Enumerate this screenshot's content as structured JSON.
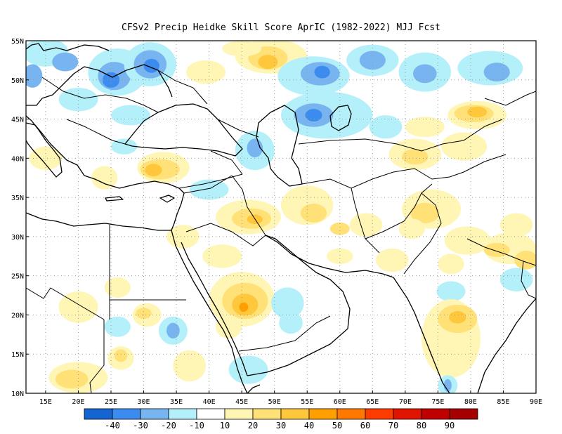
{
  "title": "CFSv2 Precip Heidke Skill Score AprIC (1982-2022) MJJ Fcst",
  "map": {
    "lon_range": [
      12,
      90
    ],
    "lat_range": [
      10,
      55
    ],
    "lon_ticks": [
      15,
      20,
      25,
      30,
      35,
      40,
      45,
      50,
      55,
      60,
      65,
      70,
      75,
      80,
      85,
      90
    ],
    "lon_tick_labels": [
      "15E",
      "20E",
      "25E",
      "30E",
      "35E",
      "40E",
      "45E",
      "50E",
      "55E",
      "60E",
      "65E",
      "70E",
      "75E",
      "80E",
      "85E",
      "90E"
    ],
    "lat_ticks": [
      10,
      15,
      20,
      25,
      30,
      35,
      40,
      45,
      50,
      55
    ],
    "lat_tick_labels": [
      "10N",
      "15N",
      "20N",
      "25N",
      "30N",
      "35N",
      "40N",
      "45N",
      "50N",
      "55N"
    ],
    "grid": true,
    "colorbar": {
      "colors": [
        "#1464d2",
        "#3c8cf0",
        "#78b4f0",
        "#b4f0fa",
        "#ffffff",
        "#fff5b4",
        "#ffe178",
        "#ffc83c",
        "#ffa000",
        "#ff7800",
        "#ff3c00",
        "#e11400",
        "#c00000",
        "#a50000"
      ],
      "labels": [
        "-40",
        "-30",
        "-20",
        "-10",
        "10",
        "20",
        "30",
        "40",
        "50",
        "60",
        "70",
        "80",
        "90"
      ]
    },
    "skill_patches": [
      {
        "lon": 15,
        "lat": 53.5,
        "rx": 3.5,
        "ry": 1.8,
        "color": "#b4f0fa"
      },
      {
        "lon": 18,
        "lat": 52.3,
        "rx": 2,
        "ry": 1.2,
        "color": "#78b4f0"
      },
      {
        "lon": 13,
        "lat": 50.5,
        "rx": 1.5,
        "ry": 1.5,
        "color": "#78b4f0"
      },
      {
        "lon": 26,
        "lat": 51,
        "rx": 4.5,
        "ry": 3,
        "color": "#b4f0fa"
      },
      {
        "lon": 25.5,
        "lat": 50.5,
        "rx": 2.5,
        "ry": 1.8,
        "color": "#78b4f0"
      },
      {
        "lon": 25,
        "lat": 50,
        "rx": 1.3,
        "ry": 1,
        "color": "#3c8cf0"
      },
      {
        "lon": 31,
        "lat": 52,
        "rx": 4,
        "ry": 2.8,
        "color": "#b4f0fa"
      },
      {
        "lon": 31,
        "lat": 52,
        "rx": 2.5,
        "ry": 1.8,
        "color": "#78b4f0"
      },
      {
        "lon": 31.2,
        "lat": 51.8,
        "rx": 1.2,
        "ry": 0.9,
        "color": "#3c8cf0"
      },
      {
        "lon": 20,
        "lat": 47.5,
        "rx": 3,
        "ry": 1.5,
        "color": "#b4f0fa"
      },
      {
        "lon": 28,
        "lat": 45.5,
        "rx": 3,
        "ry": 1.3,
        "color": "#b4f0fa"
      },
      {
        "lon": 39.5,
        "lat": 51,
        "rx": 3,
        "ry": 1.5,
        "color": "#fff5b4"
      },
      {
        "lon": 49.5,
        "lat": 53,
        "rx": 5.5,
        "ry": 2.2,
        "color": "#fff5b4"
      },
      {
        "lon": 49,
        "lat": 52.8,
        "rx": 3,
        "ry": 1.5,
        "color": "#ffe178"
      },
      {
        "lon": 49,
        "lat": 52.3,
        "rx": 1.5,
        "ry": 0.9,
        "color": "#ffc83c"
      },
      {
        "lon": 45,
        "lat": 54,
        "rx": 3,
        "ry": 1,
        "color": "#fff5b4"
      },
      {
        "lon": 56,
        "lat": 50.5,
        "rx": 5.5,
        "ry": 2.5,
        "color": "#b4f0fa"
      },
      {
        "lon": 57,
        "lat": 50.8,
        "rx": 3,
        "ry": 1.5,
        "color": "#78b4f0"
      },
      {
        "lon": 57.3,
        "lat": 51,
        "rx": 1.2,
        "ry": 0.8,
        "color": "#3c8cf0"
      },
      {
        "lon": 65,
        "lat": 52.5,
        "rx": 4,
        "ry": 2,
        "color": "#b4f0fa"
      },
      {
        "lon": 65,
        "lat": 52.5,
        "rx": 2,
        "ry": 1.2,
        "color": "#78b4f0"
      },
      {
        "lon": 73,
        "lat": 51,
        "rx": 4,
        "ry": 2.5,
        "color": "#b4f0fa"
      },
      {
        "lon": 73,
        "lat": 50.8,
        "rx": 1.8,
        "ry": 1.2,
        "color": "#78b4f0"
      },
      {
        "lon": 83,
        "lat": 51.5,
        "rx": 5,
        "ry": 2.2,
        "color": "#b4f0fa"
      },
      {
        "lon": 84,
        "lat": 51,
        "rx": 2,
        "ry": 1.2,
        "color": "#78b4f0"
      },
      {
        "lon": 58,
        "lat": 45.5,
        "rx": 7,
        "ry": 3,
        "color": "#b4f0fa"
      },
      {
        "lon": 56,
        "lat": 45.5,
        "rx": 3,
        "ry": 1.5,
        "color": "#78b4f0"
      },
      {
        "lon": 56,
        "lat": 45.5,
        "rx": 1.3,
        "ry": 0.8,
        "color": "#3c8cf0"
      },
      {
        "lon": 47,
        "lat": 41,
        "rx": 3,
        "ry": 2.5,
        "color": "#b4f0fa"
      },
      {
        "lon": 47,
        "lat": 41.3,
        "rx": 1.2,
        "ry": 1.2,
        "color": "#78b4f0"
      },
      {
        "lon": 67,
        "lat": 44,
        "rx": 2.5,
        "ry": 1.5,
        "color": "#b4f0fa"
      },
      {
        "lon": 81,
        "lat": 45.5,
        "rx": 4.5,
        "ry": 1.8,
        "color": "#fff5b4"
      },
      {
        "lon": 80.5,
        "lat": 45.7,
        "rx": 3,
        "ry": 1.1,
        "color": "#ffe178"
      },
      {
        "lon": 81,
        "lat": 45.9,
        "rx": 1.5,
        "ry": 0.7,
        "color": "#ffc83c"
      },
      {
        "lon": 73,
        "lat": 44,
        "rx": 3,
        "ry": 1.3,
        "color": "#fff5b4"
      },
      {
        "lon": 71.5,
        "lat": 40.5,
        "rx": 4,
        "ry": 2,
        "color": "#fff5b4"
      },
      {
        "lon": 71.5,
        "lat": 40.2,
        "rx": 2,
        "ry": 1,
        "color": "#ffe178"
      },
      {
        "lon": 79,
        "lat": 41.5,
        "rx": 3.5,
        "ry": 1.8,
        "color": "#fff5b4"
      },
      {
        "lon": 33,
        "lat": 38.8,
        "rx": 4,
        "ry": 2,
        "color": "#fff5b4"
      },
      {
        "lon": 32.5,
        "lat": 38.6,
        "rx": 3,
        "ry": 1.3,
        "color": "#ffe178"
      },
      {
        "lon": 31.5,
        "lat": 38.5,
        "rx": 1.3,
        "ry": 0.8,
        "color": "#ffc83c"
      },
      {
        "lon": 27,
        "lat": 41.5,
        "rx": 2,
        "ry": 1,
        "color": "#b4f0fa"
      },
      {
        "lon": 15,
        "lat": 40,
        "rx": 2.5,
        "ry": 1.5,
        "color": "#fff5b4"
      },
      {
        "lon": 24,
        "lat": 37.5,
        "rx": 2,
        "ry": 1.5,
        "color": "#fff5b4"
      },
      {
        "lon": 40,
        "lat": 36,
        "rx": 3,
        "ry": 1.3,
        "color": "#b4f0fa"
      },
      {
        "lon": 46,
        "lat": 32.5,
        "rx": 5,
        "ry": 2.2,
        "color": "#fff5b4"
      },
      {
        "lon": 46.5,
        "lat": 32.3,
        "rx": 3,
        "ry": 1.3,
        "color": "#ffe178"
      },
      {
        "lon": 47,
        "lat": 32.2,
        "rx": 1.2,
        "ry": 0.6,
        "color": "#ffc83c"
      },
      {
        "lon": 36,
        "lat": 30,
        "rx": 2.5,
        "ry": 1.5,
        "color": "#fff5b4"
      },
      {
        "lon": 42,
        "lat": 27.5,
        "rx": 3,
        "ry": 1.5,
        "color": "#fff5b4"
      },
      {
        "lon": 55,
        "lat": 34,
        "rx": 4,
        "ry": 2.5,
        "color": "#fff5b4"
      },
      {
        "lon": 56,
        "lat": 33,
        "rx": 2,
        "ry": 1.2,
        "color": "#ffe178"
      },
      {
        "lon": 60,
        "lat": 31,
        "rx": 1.5,
        "ry": 0.8,
        "color": "#ffe178"
      },
      {
        "lon": 64,
        "lat": 31.5,
        "rx": 2.5,
        "ry": 1.5,
        "color": "#fff5b4"
      },
      {
        "lon": 74,
        "lat": 33.5,
        "rx": 4.5,
        "ry": 2.5,
        "color": "#fff5b4"
      },
      {
        "lon": 73,
        "lat": 33,
        "rx": 2.2,
        "ry": 1.3,
        "color": "#ffe178"
      },
      {
        "lon": 71,
        "lat": 31,
        "rx": 2,
        "ry": 1.3,
        "color": "#fff5b4"
      },
      {
        "lon": 79.5,
        "lat": 29.5,
        "rx": 3.5,
        "ry": 1.8,
        "color": "#fff5b4"
      },
      {
        "lon": 86,
        "lat": 28.5,
        "rx": 4,
        "ry": 2,
        "color": "#fff5b4"
      },
      {
        "lon": 84,
        "lat": 28.3,
        "rx": 2,
        "ry": 0.9,
        "color": "#ffe178"
      },
      {
        "lon": 88.5,
        "lat": 27,
        "rx": 1.8,
        "ry": 1.2,
        "color": "#ffe178"
      },
      {
        "lon": 87,
        "lat": 31.5,
        "rx": 2.5,
        "ry": 1.5,
        "color": "#fff5b4"
      },
      {
        "lon": 87,
        "lat": 24.5,
        "rx": 2.5,
        "ry": 1.5,
        "color": "#b4f0fa"
      },
      {
        "lon": 77,
        "lat": 26.5,
        "rx": 2,
        "ry": 1.3,
        "color": "#fff5b4"
      },
      {
        "lon": 77,
        "lat": 23,
        "rx": 2.2,
        "ry": 1.3,
        "color": "#b4f0fa"
      },
      {
        "lon": 68,
        "lat": 27,
        "rx": 2.5,
        "ry": 1.5,
        "color": "#fff5b4"
      },
      {
        "lon": 60,
        "lat": 27.5,
        "rx": 2,
        "ry": 1,
        "color": "#fff5b4"
      },
      {
        "lon": 45,
        "lat": 22,
        "rx": 5,
        "ry": 3.5,
        "color": "#fff5b4"
      },
      {
        "lon": 45.5,
        "lat": 21.8,
        "rx": 3.5,
        "ry": 2.3,
        "color": "#ffe178"
      },
      {
        "lon": 45.5,
        "lat": 21.3,
        "rx": 2,
        "ry": 1.4,
        "color": "#ffc83c"
      },
      {
        "lon": 45.3,
        "lat": 21,
        "rx": 0.7,
        "ry": 0.6,
        "color": "#ffa000"
      },
      {
        "lon": 43,
        "lat": 18.5,
        "rx": 2,
        "ry": 1.5,
        "color": "#fff5b4"
      },
      {
        "lon": 52,
        "lat": 21.5,
        "rx": 2.5,
        "ry": 2,
        "color": "#b4f0fa"
      },
      {
        "lon": 52.5,
        "lat": 19,
        "rx": 1.8,
        "ry": 1.4,
        "color": "#b4f0fa"
      },
      {
        "lon": 30.5,
        "lat": 20,
        "rx": 2.2,
        "ry": 1.5,
        "color": "#fff5b4"
      },
      {
        "lon": 30,
        "lat": 20.2,
        "rx": 1.2,
        "ry": 0.7,
        "color": "#ffe178"
      },
      {
        "lon": 20,
        "lat": 21,
        "rx": 3,
        "ry": 2,
        "color": "#fff5b4"
      },
      {
        "lon": 26,
        "lat": 23.5,
        "rx": 2,
        "ry": 1.3,
        "color": "#fff5b4"
      },
      {
        "lon": 26,
        "lat": 18.5,
        "rx": 2,
        "ry": 1.3,
        "color": "#b4f0fa"
      },
      {
        "lon": 34.5,
        "lat": 18,
        "rx": 2.2,
        "ry": 1.8,
        "color": "#b4f0fa"
      },
      {
        "lon": 34.5,
        "lat": 18,
        "rx": 1,
        "ry": 1,
        "color": "#78b4f0"
      },
      {
        "lon": 20,
        "lat": 12,
        "rx": 4.5,
        "ry": 2,
        "color": "#fff5b4"
      },
      {
        "lon": 19,
        "lat": 11.8,
        "rx": 2.5,
        "ry": 1.2,
        "color": "#ffe178"
      },
      {
        "lon": 26.5,
        "lat": 14.5,
        "rx": 2,
        "ry": 1.5,
        "color": "#fff5b4"
      },
      {
        "lon": 26.5,
        "lat": 14.8,
        "rx": 1,
        "ry": 0.8,
        "color": "#ffe178"
      },
      {
        "lon": 37,
        "lat": 13.5,
        "rx": 2.5,
        "ry": 2,
        "color": "#fff5b4"
      },
      {
        "lon": 46,
        "lat": 13,
        "rx": 3,
        "ry": 1.8,
        "color": "#b4f0fa"
      },
      {
        "lon": 77,
        "lat": 17,
        "rx": 4.5,
        "ry": 5,
        "color": "#fff5b4"
      },
      {
        "lon": 78,
        "lat": 19.5,
        "rx": 3,
        "ry": 1.8,
        "color": "#ffe178"
      },
      {
        "lon": 78,
        "lat": 19.7,
        "rx": 1.3,
        "ry": 0.8,
        "color": "#ffc83c"
      },
      {
        "lon": 76.5,
        "lat": 11,
        "rx": 1.5,
        "ry": 1.3,
        "color": "#b4f0fa"
      },
      {
        "lon": 76.5,
        "lat": 11,
        "rx": 0.6,
        "ry": 0.8,
        "color": "#78b4f0"
      }
    ]
  }
}
